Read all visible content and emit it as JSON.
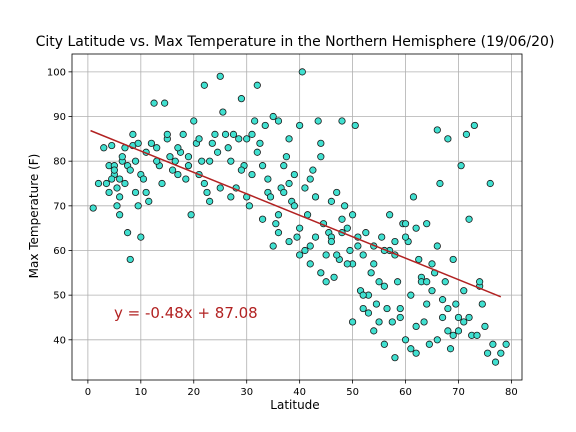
{
  "chart_data": {
    "type": "scatter",
    "title": "City Latitude vs. Max Temperature in the Northern Hemisphere (19/06/20)",
    "xlabel": "Latitude",
    "ylabel": "Max Temperature (F)",
    "xlim": [
      -3,
      82
    ],
    "ylim": [
      31,
      104
    ],
    "xticks": [
      0,
      10,
      20,
      30,
      40,
      50,
      60,
      70,
      80
    ],
    "yticks": [
      40,
      50,
      60,
      70,
      80,
      90,
      100
    ],
    "grid": true,
    "regression": {
      "equation": "y = -0.48x + 87.08",
      "slope": -0.48,
      "intercept": 87.08,
      "x_range": [
        0.5,
        78
      ]
    },
    "points": [
      [
        1,
        69.5
      ],
      [
        2,
        75
      ],
      [
        3,
        83
      ],
      [
        3.5,
        75
      ],
      [
        4,
        79
      ],
      [
        4.5,
        83.5
      ],
      [
        5,
        79
      ],
      [
        5,
        77
      ],
      [
        5.5,
        74
      ],
      [
        6,
        72
      ],
      [
        6,
        76
      ],
      [
        6.5,
        80
      ],
      [
        7,
        83
      ],
      [
        7.5,
        79
      ],
      [
        8,
        78
      ],
      [
        8.5,
        83.5
      ],
      [
        9,
        80
      ],
      [
        9.5,
        84
      ],
      [
        9,
        73
      ],
      [
        10,
        77
      ],
      [
        10.5,
        76
      ],
      [
        4,
        73
      ],
      [
        4.5,
        76
      ],
      [
        5,
        78
      ],
      [
        5.5,
        70
      ],
      [
        6,
        68
      ],
      [
        6.5,
        81
      ],
      [
        7.5,
        64
      ],
      [
        8,
        58
      ],
      [
        8.5,
        86
      ],
      [
        9.5,
        70
      ],
      [
        10,
        63
      ],
      [
        11,
        82
      ],
      [
        11.5,
        71
      ],
      [
        12,
        84
      ],
      [
        12.5,
        93
      ],
      [
        13,
        83
      ],
      [
        13.5,
        79
      ],
      [
        14,
        75
      ],
      [
        14.5,
        93
      ],
      [
        15,
        85
      ],
      [
        15.5,
        81
      ],
      [
        16,
        78
      ],
      [
        16.5,
        80
      ],
      [
        17,
        77
      ],
      [
        17.5,
        82
      ],
      [
        18,
        86
      ],
      [
        18.5,
        76
      ],
      [
        19,
        81
      ],
      [
        19.5,
        68
      ],
      [
        20,
        89
      ],
      [
        20.5,
        84
      ],
      [
        21,
        85
      ],
      [
        21.5,
        80
      ],
      [
        22,
        97
      ],
      [
        22,
        75
      ],
      [
        22.5,
        73
      ],
      [
        23,
        80
      ],
      [
        23.5,
        84
      ],
      [
        24,
        86
      ],
      [
        24.5,
        82
      ],
      [
        25,
        99
      ],
      [
        25.5,
        91
      ],
      [
        26,
        86
      ],
      [
        26.5,
        83
      ],
      [
        27,
        80
      ],
      [
        27.5,
        86
      ],
      [
        28,
        74
      ],
      [
        28.5,
        85
      ],
      [
        29,
        94
      ],
      [
        29.5,
        79
      ],
      [
        30,
        72
      ],
      [
        30.5,
        70
      ],
      [
        31,
        86
      ],
      [
        31.5,
        89
      ],
      [
        32,
        97
      ],
      [
        32.5,
        84
      ],
      [
        33,
        79
      ],
      [
        33.5,
        88
      ],
      [
        34,
        73
      ],
      [
        34.5,
        72
      ],
      [
        35,
        90
      ],
      [
        35.5,
        66
      ],
      [
        36,
        68
      ],
      [
        36.5,
        74
      ],
      [
        37,
        79
      ],
      [
        37.5,
        81
      ],
      [
        38,
        75
      ],
      [
        38.5,
        71
      ],
      [
        39,
        70
      ],
      [
        39.5,
        63
      ],
      [
        40,
        65
      ],
      [
        40.5,
        100
      ],
      [
        41,
        74
      ],
      [
        41.5,
        68
      ],
      [
        42,
        61
      ],
      [
        42.5,
        78
      ],
      [
        43,
        72
      ],
      [
        43.5,
        89
      ],
      [
        44,
        84
      ],
      [
        44.5,
        66
      ],
      [
        45,
        59
      ],
      [
        45.5,
        64
      ],
      [
        46,
        63
      ],
      [
        46.5,
        54
      ],
      [
        47,
        73
      ],
      [
        47.5,
        58
      ],
      [
        48,
        89
      ],
      [
        48.5,
        70
      ],
      [
        49,
        65
      ],
      [
        49.5,
        60
      ],
      [
        50,
        57
      ],
      [
        50.5,
        88
      ],
      [
        51,
        63
      ],
      [
        51.5,
        51
      ],
      [
        52,
        59
      ],
      [
        52.5,
        64
      ],
      [
        53,
        46
      ],
      [
        53.5,
        55
      ],
      [
        54,
        61
      ],
      [
        54.5,
        48
      ],
      [
        55,
        53
      ],
      [
        55.5,
        63
      ],
      [
        56,
        52
      ],
      [
        56.5,
        47
      ],
      [
        57,
        68
      ],
      [
        57.5,
        44
      ],
      [
        58,
        59
      ],
      [
        58.5,
        53
      ],
      [
        59,
        47
      ],
      [
        59.5,
        66
      ],
      [
        60,
        66
      ],
      [
        60.5,
        62
      ],
      [
        61,
        50
      ],
      [
        61.5,
        72
      ],
      [
        62,
        37
      ],
      [
        62.5,
        58
      ],
      [
        63,
        54
      ],
      [
        63.5,
        44
      ],
      [
        64,
        66
      ],
      [
        64.5,
        39
      ],
      [
        65,
        51
      ],
      [
        65.5,
        55
      ],
      [
        66,
        61
      ],
      [
        66.5,
        75
      ],
      [
        67,
        49
      ],
      [
        67.5,
        53
      ],
      [
        68,
        42
      ],
      [
        68.5,
        38
      ],
      [
        69,
        58
      ],
      [
        69.5,
        48
      ],
      [
        70,
        42
      ],
      [
        70.5,
        79
      ],
      [
        71,
        51
      ],
      [
        71.5,
        86
      ],
      [
        72,
        45
      ],
      [
        72.5,
        41
      ],
      [
        73,
        88
      ],
      [
        73.5,
        41
      ],
      [
        74,
        52
      ],
      [
        74.5,
        48
      ],
      [
        75,
        43
      ],
      [
        75.5,
        37
      ],
      [
        76,
        75
      ],
      [
        76.5,
        39
      ],
      [
        77,
        35
      ],
      [
        78,
        37
      ],
      [
        79,
        39
      ],
      [
        29,
        78
      ],
      [
        31,
        77
      ],
      [
        33,
        67
      ],
      [
        35,
        61
      ],
      [
        37,
        73
      ],
      [
        39,
        77
      ],
      [
        41,
        60
      ],
      [
        43,
        63
      ],
      [
        45,
        53
      ],
      [
        47,
        59
      ],
      [
        49,
        57
      ],
      [
        51,
        61
      ],
      [
        53,
        50
      ],
      [
        55,
        44
      ],
      [
        57,
        60
      ],
      [
        59,
        45
      ],
      [
        61,
        38
      ],
      [
        63,
        53
      ],
      [
        65,
        57
      ],
      [
        67,
        45
      ],
      [
        69,
        41
      ],
      [
        71,
        44
      ],
      [
        36,
        89
      ],
      [
        38,
        85
      ],
      [
        40,
        88
      ],
      [
        42,
        76
      ],
      [
        44,
        81
      ],
      [
        46,
        71
      ],
      [
        48,
        67
      ],
      [
        50,
        68
      ],
      [
        52,
        47
      ],
      [
        54,
        42
      ],
      [
        56,
        39
      ],
      [
        58,
        36
      ],
      [
        60,
        40
      ],
      [
        62,
        43
      ],
      [
        64,
        48
      ],
      [
        66,
        40
      ],
      [
        68,
        47
      ],
      [
        70,
        45
      ],
      [
        72,
        67
      ],
      [
        74,
        53
      ],
      [
        30,
        85
      ],
      [
        32,
        82
      ],
      [
        34,
        76
      ],
      [
        36,
        64
      ],
      [
        38,
        62
      ],
      [
        40,
        59
      ],
      [
        42,
        57
      ],
      [
        44,
        55
      ],
      [
        46,
        62
      ],
      [
        48,
        64
      ],
      [
        50,
        44
      ],
      [
        52,
        50
      ],
      [
        54,
        57
      ],
      [
        56,
        60
      ],
      [
        58,
        62
      ],
      [
        60,
        63
      ],
      [
        62,
        65
      ],
      [
        64,
        53
      ],
      [
        66,
        87
      ],
      [
        68,
        85
      ],
      [
        15,
        86
      ],
      [
        17,
        83
      ],
      [
        19,
        79
      ],
      [
        21,
        77
      ],
      [
        23,
        71
      ],
      [
        25,
        74
      ],
      [
        27,
        72
      ],
      [
        13,
        80
      ],
      [
        11,
        73
      ],
      [
        7,
        75
      ]
    ]
  }
}
